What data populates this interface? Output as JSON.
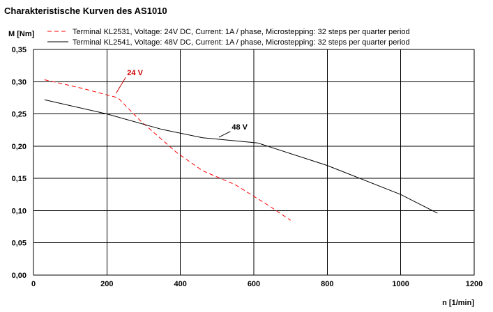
{
  "chart_data": {
    "type": "line",
    "title": "Charakteristische Kurven des AS1010",
    "ylabel": "M [Nm]",
    "xlabel": "n [1/min]",
    "xlim": [
      0,
      1200
    ],
    "ylim": [
      0,
      0.35
    ],
    "x_ticks": [
      "0",
      "200",
      "400",
      "600",
      "800",
      "1000",
      "1200"
    ],
    "y_ticks": [
      "0,00",
      "0,05",
      "0,10",
      "0,15",
      "0,20",
      "0,25",
      "0,30",
      "0,35"
    ],
    "grid": true,
    "legend_position": "top",
    "series": [
      {
        "name": "Terminal KL2531, Voltage: 24V DC, Current: 1A / phase, Microstepping: 32 steps per quarter period",
        "style": "dashed",
        "color": "#ff0000",
        "x": [
          30,
          130,
          230,
          290,
          340,
          390,
          460,
          550,
          640,
          700
        ],
        "y": [
          0.303,
          0.29,
          0.275,
          0.24,
          0.215,
          0.19,
          0.162,
          0.14,
          0.108,
          0.085
        ]
      },
      {
        "name": "Terminal KL2541, Voltage: 48V DC, Current: 1A / phase, Microstepping: 32 steps per quarter period",
        "style": "solid",
        "color": "#000000",
        "x": [
          30,
          200,
          350,
          460,
          610,
          800,
          1000,
          1100
        ],
        "y": [
          0.272,
          0.25,
          0.226,
          0.213,
          0.205,
          0.17,
          0.125,
          0.096
        ]
      }
    ],
    "annotations": [
      {
        "text": "24 V",
        "color": "#cc0000",
        "x": 255,
        "y": 0.31,
        "from_x": 225,
        "from_y": 0.282
      },
      {
        "text": "48 V",
        "color": "#000000",
        "x": 540,
        "y": 0.226,
        "from_x": 505,
        "from_y": 0.214
      }
    ]
  }
}
